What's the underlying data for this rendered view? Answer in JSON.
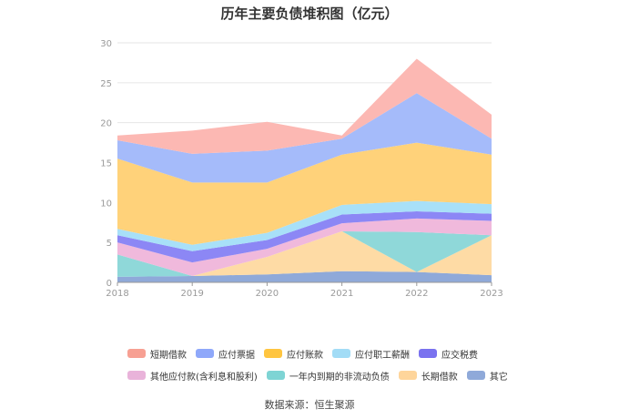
{
  "title": "历年主要负债堆积图（亿元）",
  "source": "数据来源：恒生聚源",
  "chart_data": {
    "type": "area",
    "stacked": true,
    "title": "历年主要负债堆积图（亿元）",
    "categories": [
      "2018",
      "2019",
      "2020",
      "2021",
      "2022",
      "2023"
    ],
    "ylim": [
      0,
      30
    ],
    "yticks": [
      0,
      5,
      10,
      15,
      20,
      25,
      30
    ],
    "grid": true,
    "legend_position": "bottom",
    "series": [
      {
        "name": "其它",
        "color": "#8fa9d9",
        "values": [
          0.7,
          0.8,
          1.0,
          1.4,
          1.3,
          0.9
        ]
      },
      {
        "name": "长期借款",
        "color": "#fedba5",
        "values": [
          0.0,
          0.0,
          2.2,
          5.0,
          0.0,
          5.0
        ]
      },
      {
        "name": "一年内到期的非流动负债",
        "color": "#8fd8d9",
        "values": [
          2.8,
          0.0,
          0.0,
          0.0,
          5.0,
          0.0
        ]
      },
      {
        "name": "其他应付款(含利息和股利)",
        "color": "#f0b9dc",
        "values": [
          1.5,
          1.7,
          1.0,
          1.0,
          1.7,
          1.8
        ]
      },
      {
        "name": "应交税费",
        "color": "#8c87f5",
        "values": [
          0.9,
          1.4,
          1.1,
          1.1,
          0.9,
          0.9
        ]
      },
      {
        "name": "应付职工薪酬",
        "color": "#a8e0f8",
        "values": [
          0.8,
          0.8,
          0.9,
          1.2,
          1.3,
          1.2
        ]
      },
      {
        "name": "应付账款",
        "color": "#ffd27a",
        "values": [
          8.8,
          7.8,
          6.3,
          6.3,
          7.3,
          6.2
        ]
      },
      {
        "name": "应付票据",
        "color": "#a5bbfa",
        "values": [
          2.3,
          3.6,
          4.0,
          2.0,
          6.2,
          2.0
        ]
      },
      {
        "name": "短期借款",
        "color": "#fcb8b3",
        "values": [
          0.6,
          2.9,
          3.6,
          0.4,
          4.3,
          3.0
        ]
      }
    ]
  },
  "legend": [
    [
      {
        "name": "短期借款",
        "color": "#f7a093"
      },
      {
        "name": "应付票据",
        "color": "#8fa8fa"
      },
      {
        "name": "应付账款",
        "color": "#ffc540"
      },
      {
        "name": "应付职工薪酬",
        "color": "#a2dcf6"
      },
      {
        "name": "应交税费",
        "color": "#7a72ef"
      }
    ],
    [
      {
        "name": "其他应付款(含利息和股利)",
        "color": "#e9b3da"
      },
      {
        "name": "一年内到期的非流动负债",
        "color": "#7ed4d4"
      },
      {
        "name": "长期借款",
        "color": "#fed59b"
      },
      {
        "name": "其它",
        "color": "#8fa9d9"
      }
    ]
  ]
}
